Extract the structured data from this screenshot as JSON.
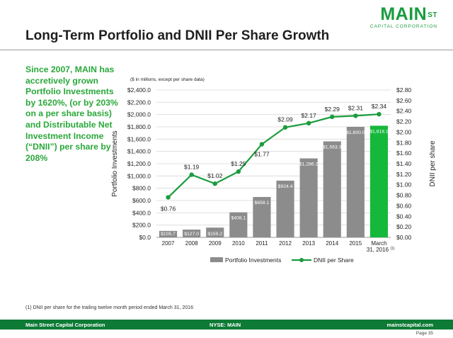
{
  "header": {
    "title": "Long-Term Portfolio and DNII Per Share Growth",
    "logo_main": "MAIN",
    "logo_st": "ST",
    "logo_sub": "CAPITAL CORPORATION"
  },
  "summary": "Since 2007, MAIN has accretively grown Portfolio Investments by 1620%, (or by 203% on a per share basis) and Distributable Net Investment Income (“DNII”) per share by 208%",
  "footnote": "(1)   DNII per share for the trailing twelve month period ended March 31, 2016",
  "footer": {
    "left": "Main Street Capital Corporation",
    "center": "NYSE: MAIN",
    "right": "mainstcapital.com",
    "page": "Page 35"
  },
  "chart_data": {
    "type": "bar",
    "note": "($ in millions, except per share data)",
    "categories": [
      "2007",
      "2008",
      "2009",
      "2010",
      "2011",
      "2012",
      "2013",
      "2014",
      "2015",
      "March 31, 2016"
    ],
    "category_superscripts": [
      "",
      "",
      "",
      "",
      "",
      "",
      "",
      "",
      "",
      "(1)"
    ],
    "series": [
      {
        "name": "Portfolio Investments",
        "kind": "bar",
        "axis": "left",
        "color": "#8c8c8c",
        "highlight_color": "#16b83c",
        "values": [
          105.7,
          127.0,
          159.2,
          408.1,
          658.1,
          924.4,
          1286.2,
          1563.3,
          1800.0,
          1818.1
        ],
        "labels": [
          "$105.7",
          "$127.0",
          "$159.2",
          "$408.1",
          "$658.1",
          "$924.4",
          "$1,286.2",
          "$1,563.3",
          "$1,800.0",
          "$1,818.1"
        ]
      },
      {
        "name": "DNII per Share",
        "kind": "line",
        "axis": "right",
        "color": "#1a9c3e",
        "values": [
          0.76,
          1.19,
          1.02,
          1.25,
          1.77,
          2.09,
          2.17,
          2.29,
          2.31,
          2.34
        ],
        "labels": [
          "$0.76",
          "$1.19",
          "$1.02",
          "$1.25",
          "$1.77",
          "$2.09",
          "$2.17",
          "$2.29",
          "$2.31",
          "$2.34"
        ]
      }
    ],
    "ylabel": "Portfolio Investments",
    "ylim": [
      0,
      2400
    ],
    "yticks": [
      "$0.0",
      "$200.0",
      "$400.0",
      "$600.0",
      "$800.0",
      "$1,000.0",
      "$1,200.0",
      "$1,400.0",
      "$1,600.0",
      "$1,800.0",
      "$2,000.0",
      "$2,200.0",
      "$2,400.0"
    ],
    "y2label": "DNII per share",
    "y2lim": [
      0,
      2.8
    ],
    "y2ticks": [
      "$0.00",
      "$0.20",
      "$0.40",
      "$0.60",
      "$0.80",
      "$1.00",
      "$1.20",
      "$1.40",
      "$1.60",
      "$1.80",
      "$2.00",
      "$2.20",
      "$2.40",
      "$2.60",
      "$2.80"
    ],
    "grid": true,
    "legend": "bottom"
  }
}
